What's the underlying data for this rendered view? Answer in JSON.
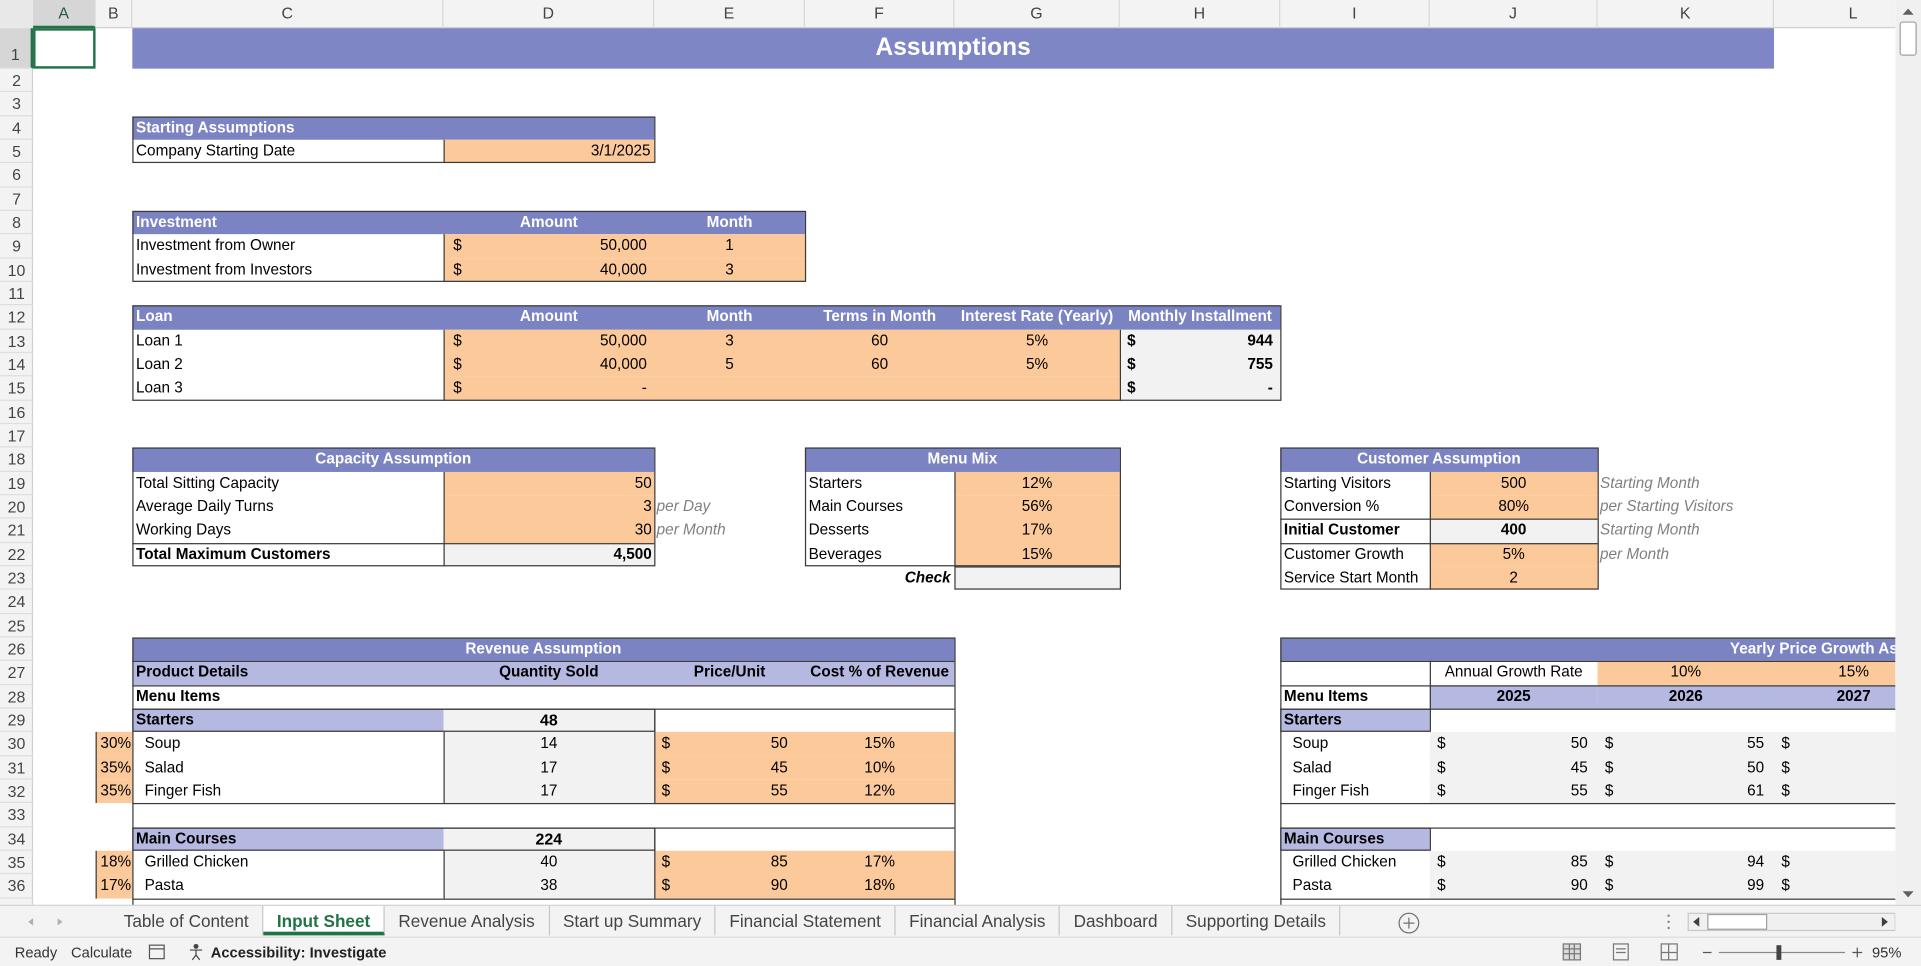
{
  "column_headers": [
    "A",
    "B",
    "C",
    "D",
    "E",
    "F",
    "G",
    "H",
    "I",
    "J",
    "K",
    "L"
  ],
  "row_headers": [
    1,
    2,
    3,
    4,
    5,
    6,
    7,
    8,
    9,
    10,
    11,
    12,
    13,
    14,
    15,
    16,
    17,
    18,
    19,
    20,
    21,
    22,
    23,
    24,
    25,
    26,
    27,
    28,
    29,
    30,
    31,
    32,
    33,
    34,
    35,
    36
  ],
  "title": "Assumptions",
  "starting_assumptions": {
    "header": "Starting Assumptions",
    "label": "Company Starting Date",
    "value": "3/1/2025"
  },
  "investment": {
    "headers": [
      "Investment",
      "Amount",
      "Month"
    ],
    "rows": [
      {
        "label": "Investment from Owner",
        "currency": "$",
        "amount": "50,000",
        "month": 1
      },
      {
        "label": "Investment from Investors",
        "currency": "$",
        "amount": "40,000",
        "month": 3
      }
    ]
  },
  "loan": {
    "headers": [
      "Loan",
      "Amount",
      "Month",
      "Terms in Month",
      "Interest Rate (Yearly)",
      "Monthly Installment"
    ],
    "rows": [
      {
        "label": "Loan 1",
        "currency": "$",
        "amount": "50,000",
        "month": 3,
        "terms": 60,
        "rate": "5%",
        "installment_currency": "$",
        "installment": 944
      },
      {
        "label": "Loan 2",
        "currency": "$",
        "amount": "40,000",
        "month": 5,
        "terms": 60,
        "rate": "5%",
        "installment_currency": "$",
        "installment": 755
      },
      {
        "label": "Loan 3",
        "currency": "$",
        "amount": "-",
        "installment_currency": "$",
        "installment": "-"
      }
    ]
  },
  "capacity": {
    "header": "Capacity Assumption",
    "rows": [
      {
        "label": "Total Sitting Capacity",
        "value": 50
      },
      {
        "label": "Average Daily Turns",
        "value": 3,
        "unit": "per Day"
      },
      {
        "label": "Working Days",
        "value": 30,
        "unit": "per Month"
      },
      {
        "label": "Total Maximum Customers",
        "value": "4,500"
      }
    ]
  },
  "menu_mix": {
    "header": "Menu Mix",
    "rows": [
      {
        "label": "Starters",
        "value": "12%"
      },
      {
        "label": "Main Courses",
        "value": "56%"
      },
      {
        "label": "Desserts",
        "value": "17%"
      },
      {
        "label": "Beverages",
        "value": "15%"
      }
    ],
    "check_label": "Check"
  },
  "customer": {
    "header": "Customer Assumption",
    "rows": [
      {
        "label": "Starting Visitors",
        "value": 500,
        "note": "Starting Month"
      },
      {
        "label": "Conversion %",
        "value": "80%",
        "note": "per Starting Visitors"
      },
      {
        "label": "Initial Customer",
        "value": 400,
        "note": "Starting Month"
      },
      {
        "label": "Customer Growth",
        "value": "5%",
        "note": "per Month"
      },
      {
        "label": "Service Start Month",
        "value": 2
      }
    ]
  },
  "revenue": {
    "header": "Revenue Assumption",
    "columns": [
      "Product Details",
      "Quantity Sold",
      "Price/Unit",
      "Cost % of Revenue"
    ],
    "menu_items_label": "Menu Items",
    "groups": [
      {
        "name": "Starters",
        "quantity": 48,
        "items": [
          {
            "share": "30%",
            "name": "Soup",
            "quantity": 14,
            "currency": "$",
            "price": 50,
            "cost": "15%"
          },
          {
            "share": "35%",
            "name": "Salad",
            "quantity": 17,
            "currency": "$",
            "price": 45,
            "cost": "10%"
          },
          {
            "share": "35%",
            "name": "Finger Fish",
            "quantity": 17,
            "currency": "$",
            "price": 55,
            "cost": "12%"
          }
        ]
      },
      {
        "name": "Main Courses",
        "quantity": 224,
        "items": [
          {
            "share": "18%",
            "name": "Grilled Chicken",
            "quantity": 40,
            "currency": "$",
            "price": 85,
            "cost": "17%"
          },
          {
            "share": "17%",
            "name": "Pasta",
            "quantity": 38,
            "currency": "$",
            "price": 90,
            "cost": "18%"
          }
        ]
      }
    ]
  },
  "price_growth": {
    "header": "Yearly Price Growth Ass",
    "growth_label": "Annual Growth Rate",
    "growth_rates": [
      "10%",
      "15%"
    ],
    "menu_items_label": "Menu Items",
    "years": [
      2025,
      2026,
      2027
    ],
    "groups": [
      {
        "name": "Starters",
        "items": [
          {
            "name": "Soup",
            "prices": [
              {
                "currency": "$",
                "value": 50
              },
              {
                "currency": "$",
                "value": 55
              },
              {
                "currency": "$"
              }
            ]
          },
          {
            "name": "Salad",
            "prices": [
              {
                "currency": "$",
                "value": 45
              },
              {
                "currency": "$",
                "value": 50
              },
              {
                "currency": "$"
              }
            ]
          },
          {
            "name": "Finger Fish",
            "prices": [
              {
                "currency": "$",
                "value": 55
              },
              {
                "currency": "$",
                "value": 61
              },
              {
                "currency": "$"
              }
            ]
          }
        ]
      },
      {
        "name": "Main Courses",
        "items": [
          {
            "name": "Grilled Chicken",
            "prices": [
              {
                "currency": "$",
                "value": 85
              },
              {
                "currency": "$",
                "value": 94
              },
              {
                "currency": "$"
              }
            ]
          },
          {
            "name": "Pasta",
            "prices": [
              {
                "currency": "$",
                "value": 90
              },
              {
                "currency": "$",
                "value": 99
              },
              {
                "currency": "$"
              }
            ]
          }
        ]
      }
    ]
  },
  "tabs": [
    "Table of Content",
    "Input Sheet",
    "Revenue Analysis",
    "Start up Summary",
    "Financial Statement",
    "Financial Analysis",
    "Dashboard",
    "Supporting Details"
  ],
  "active_tab": 1,
  "status": {
    "mode": "Ready",
    "calculate": "Calculate",
    "accessibility": "Accessibility: Investigate",
    "zoom": "95%"
  }
}
